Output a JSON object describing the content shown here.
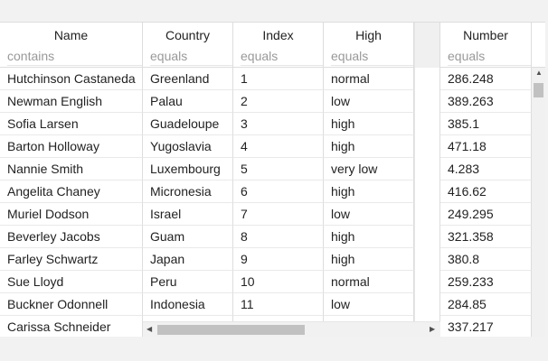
{
  "columns": [
    {
      "label": "Name",
      "filter": "contains"
    },
    {
      "label": "Country",
      "filter": "equals"
    },
    {
      "label": "Index",
      "filter": "equals"
    },
    {
      "label": "High",
      "filter": "equals"
    },
    {
      "label": "Number",
      "filter": "equals"
    }
  ],
  "rows": [
    [
      "Hutchinson Castaneda",
      "Greenland",
      "1",
      "normal",
      "286.248"
    ],
    [
      "Newman English",
      "Palau",
      "2",
      "low",
      "389.263"
    ],
    [
      "Sofia Larsen",
      "Guadeloupe",
      "3",
      "high",
      "385.1"
    ],
    [
      "Barton Holloway",
      "Yugoslavia",
      "4",
      "high",
      "471.18"
    ],
    [
      "Nannie Smith",
      "Luxembourg",
      "5",
      "very low",
      "4.283"
    ],
    [
      "Angelita Chaney",
      "Micronesia",
      "6",
      "high",
      "416.62"
    ],
    [
      "Muriel Dodson",
      "Israel",
      "7",
      "low",
      "249.295"
    ],
    [
      "Beverley Jacobs",
      "Guam",
      "8",
      "high",
      "321.358"
    ],
    [
      "Farley Schwartz",
      "Japan",
      "9",
      "high",
      "380.8"
    ],
    [
      "Sue Lloyd",
      "Peru",
      "10",
      "normal",
      "259.233"
    ],
    [
      "Buckner Odonnell",
      "Indonesia",
      "11",
      "low",
      "284.85"
    ],
    [
      "Carissa Schneider",
      "",
      "",
      "",
      "337.217"
    ]
  ],
  "icons": {
    "scroll_up": "▲",
    "scroll_down": "▼",
    "scroll_left": "◀",
    "scroll_right": "▶"
  }
}
